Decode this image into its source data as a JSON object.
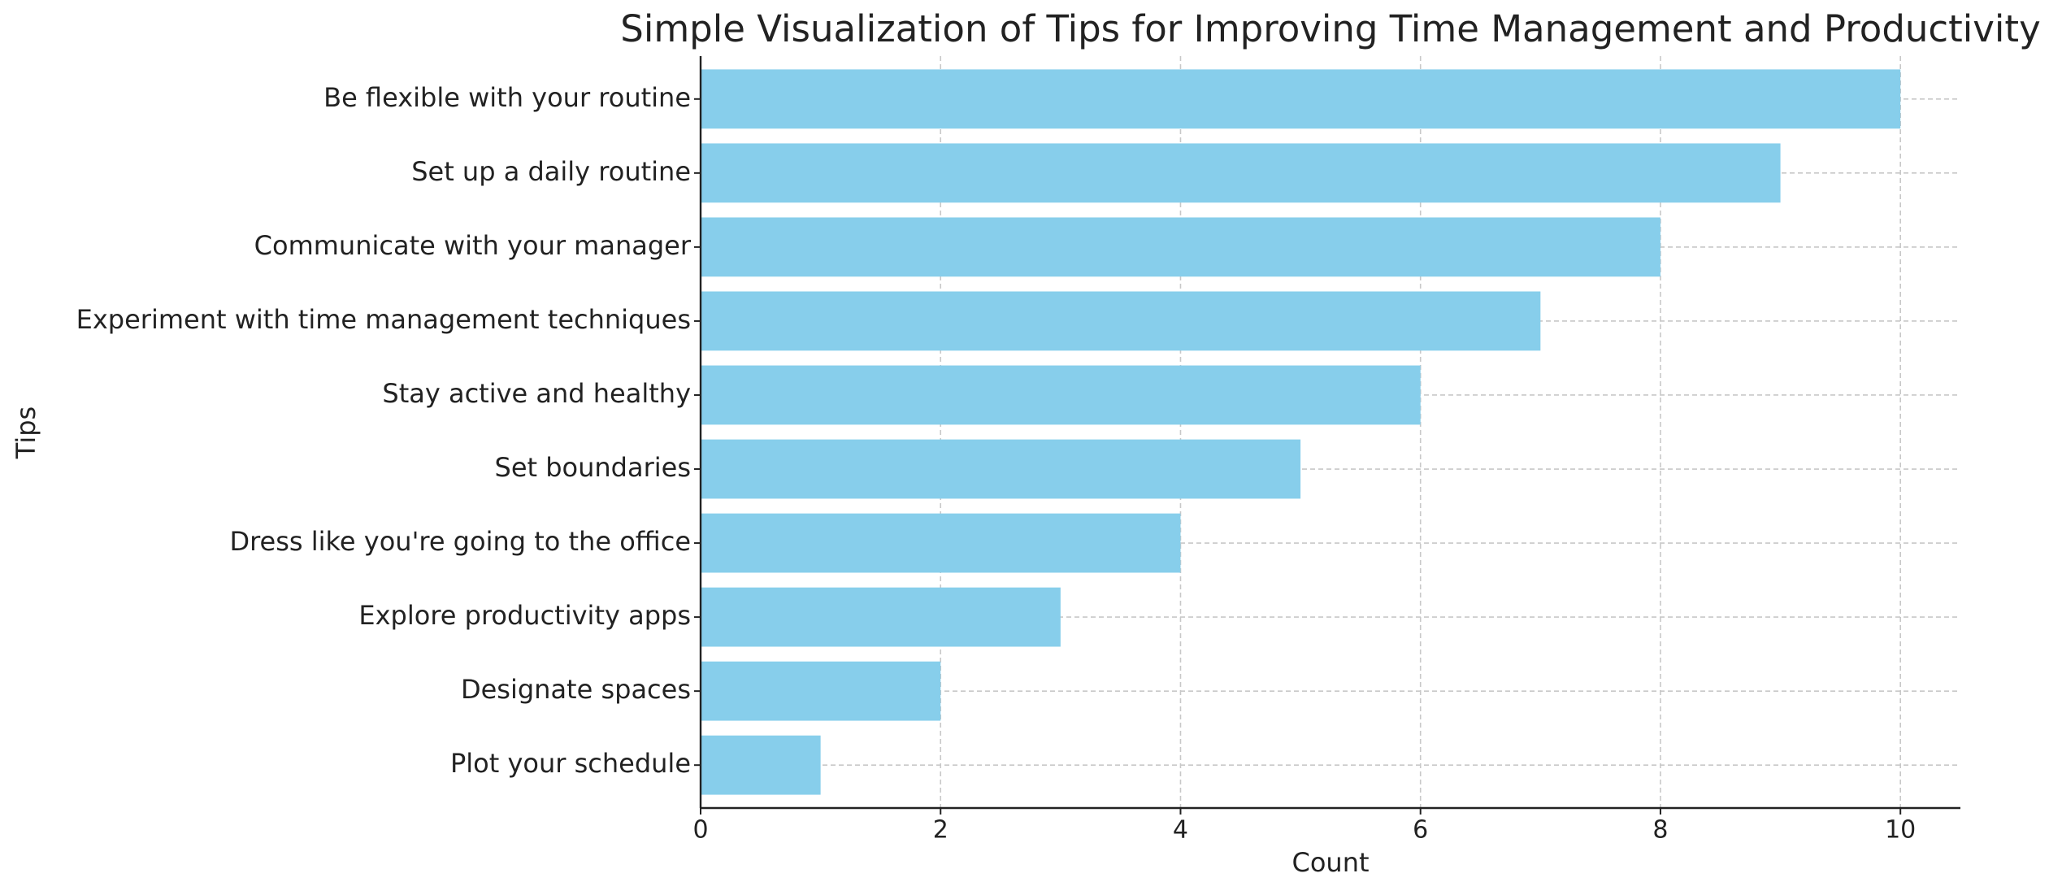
{
  "chart_data": {
    "type": "barh",
    "title": "Simple Visualization of Tips for Improving Time Management and Productivity",
    "x_label": "Count",
    "y_label": "Tips",
    "categories": [
      "Be flexible with your routine",
      "Set up a daily routine",
      "Communicate with your manager",
      "Experiment with time management techniques",
      "Stay active and healthy",
      "Set boundaries",
      "Dress like you're going to the office",
      "Explore productivity apps",
      "Designate spaces",
      "Plot your schedule"
    ],
    "values": [
      10,
      9,
      8,
      7,
      6,
      5,
      4,
      3,
      2,
      1
    ],
    "color": "#87ceeb",
    "xlim": [
      0,
      10.5
    ],
    "xticks": [
      0,
      2,
      4,
      6,
      8,
      10
    ],
    "grid": true
  }
}
